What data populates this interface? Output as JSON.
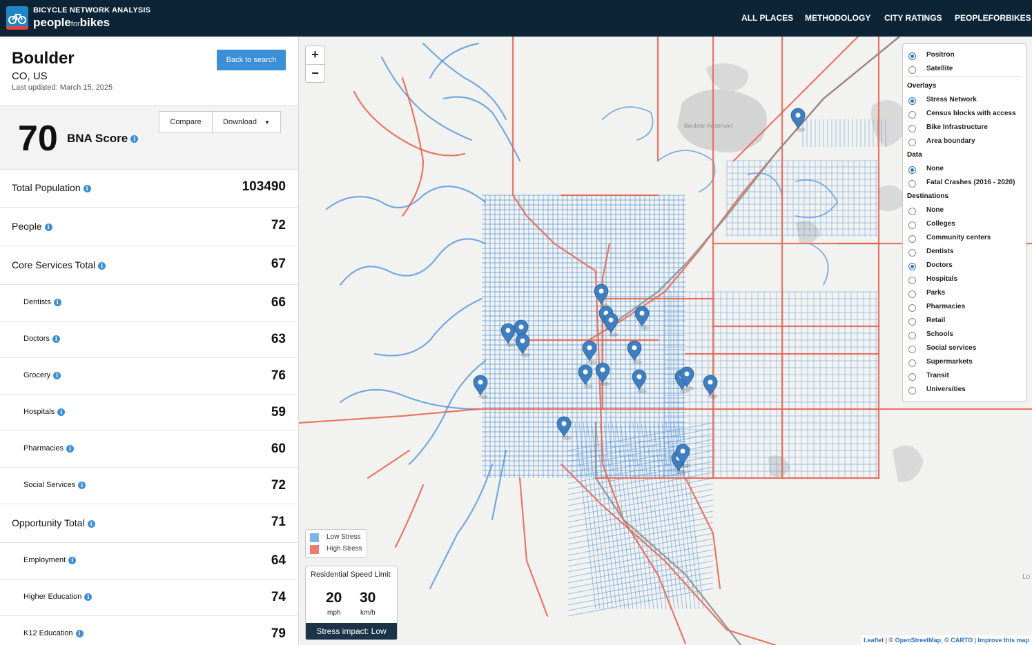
{
  "header": {
    "app_title": "BICYCLE NETWORK ANALYSIS",
    "brand_left": "people",
    "brand_mid": "for",
    "brand_right": "bikes",
    "nav": [
      "ALL PLACES",
      "METHODOLOGY",
      "CITY RATINGS",
      "PEOPLEFORBIKES"
    ]
  },
  "place": {
    "city": "Boulder",
    "region": "CO, US",
    "updated": "Last updated: March 15, 2025",
    "back_label": "Back to search"
  },
  "score": {
    "value": "70",
    "label": "BNA Score",
    "compare_label": "Compare",
    "download_label": "Download"
  },
  "metrics": [
    {
      "label": "Total Population",
      "value": "103490",
      "level": "main"
    },
    {
      "label": "People",
      "value": "72",
      "level": "main"
    },
    {
      "label": "Core Services Total",
      "value": "67",
      "level": "main"
    },
    {
      "label": "Dentists",
      "value": "66",
      "level": "sub"
    },
    {
      "label": "Doctors",
      "value": "63",
      "level": "sub"
    },
    {
      "label": "Grocery",
      "value": "76",
      "level": "sub"
    },
    {
      "label": "Hospitals",
      "value": "59",
      "level": "sub"
    },
    {
      "label": "Pharmacies",
      "value": "60",
      "level": "sub"
    },
    {
      "label": "Social Services",
      "value": "72",
      "level": "sub"
    },
    {
      "label": "Opportunity Total",
      "value": "71",
      "level": "main"
    },
    {
      "label": "Employment",
      "value": "64",
      "level": "sub"
    },
    {
      "label": "Higher Education",
      "value": "74",
      "level": "sub"
    },
    {
      "label": "K12 Education",
      "value": "79",
      "level": "sub"
    }
  ],
  "map": {
    "zoom_in": "+",
    "zoom_out": "−",
    "place_label": "Boulder Reservoir",
    "edge_label": "Lo",
    "colors": {
      "low_stress": "#4a90d9",
      "high_stress": "#e8604c",
      "marker": "#3f7fc1"
    },
    "basemaps": [
      {
        "label": "Positron",
        "checked": true
      },
      {
        "label": "Satellite",
        "checked": false
      }
    ],
    "overlays_title": "Overlays",
    "overlays": [
      {
        "label": "Stress Network",
        "checked": true
      },
      {
        "label": "Census blocks with access",
        "checked": false
      },
      {
        "label": "Bike Infrastructure",
        "checked": false
      },
      {
        "label": "Area boundary",
        "checked": false
      }
    ],
    "data_title": "Data",
    "data": [
      {
        "label": "None",
        "checked": true
      },
      {
        "label": "Fatal Crashes (2016 - 2020)",
        "checked": false
      }
    ],
    "destinations_title": "Destinations",
    "destinations": [
      {
        "label": "None",
        "checked": false
      },
      {
        "label": "Colleges",
        "checked": false
      },
      {
        "label": "Community centers",
        "checked": false
      },
      {
        "label": "Dentists",
        "checked": false
      },
      {
        "label": "Doctors",
        "checked": true
      },
      {
        "label": "Hospitals",
        "checked": false
      },
      {
        "label": "Parks",
        "checked": false
      },
      {
        "label": "Pharmacies",
        "checked": false
      },
      {
        "label": "Retail",
        "checked": false
      },
      {
        "label": "Schools",
        "checked": false
      },
      {
        "label": "Social services",
        "checked": false
      },
      {
        "label": "Supermarkets",
        "checked": false
      },
      {
        "label": "Transit",
        "checked": false
      },
      {
        "label": "Universities",
        "checked": false
      }
    ],
    "legend": {
      "low": "Low Stress",
      "high": "High Stress"
    },
    "speed": {
      "title": "Residential Speed Limit",
      "mph_value": "20",
      "mph_unit": "mph",
      "kmh_value": "30",
      "kmh_unit": "km/h",
      "impact": "Stress impact: Low"
    },
    "attribution": {
      "leaflet": "Leaflet",
      "osm": "OpenStreetMap",
      "carto": "CARTO",
      "improve": "Improve this map"
    }
  }
}
